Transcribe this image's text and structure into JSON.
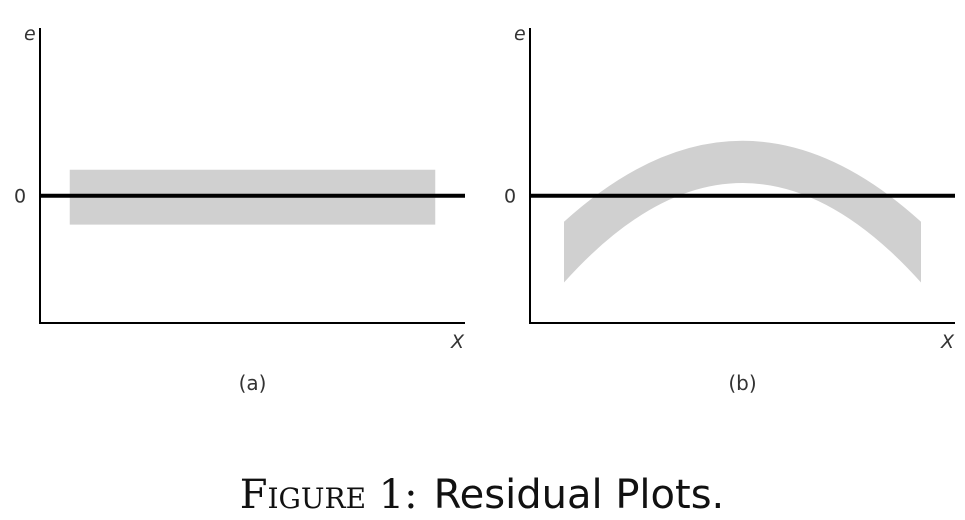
{
  "figure": {
    "caption_prefix": "Figure 1:",
    "caption_text": "Residual Plots."
  },
  "colors": {
    "band": "#d0d0d0",
    "axis": "#000000",
    "zero_line": "#000000",
    "text": "#333333"
  },
  "chart_data": [
    {
      "type": "area",
      "panel_label": "(a)",
      "xlabel": "X",
      "ylabel": "e",
      "yticks": [
        "0"
      ],
      "band_shape": "horizontal",
      "band_extent": {
        "x": [
          0.07,
          0.93
        ],
        "y": [
          -0.5,
          0.45
        ]
      },
      "band_values": [
        {
          "x": 0.07,
          "lower": -0.5,
          "upper": 0.45
        },
        {
          "x": 0.93,
          "lower": -0.5,
          "upper": 0.45
        }
      ],
      "xlim": [
        0,
        1
      ],
      "ylim": [
        -2.2,
        2.9
      ]
    },
    {
      "type": "area",
      "panel_label": "(b)",
      "xlabel": "X",
      "ylabel": "e",
      "yticks": [
        "0"
      ],
      "band_shape": "curved",
      "band_extent": {
        "x": [
          0.08,
          0.92
        ]
      },
      "band_values": [
        {
          "x": 0.08,
          "lower": -1.5,
          "upper": -0.45
        },
        {
          "x": 0.5,
          "lower": 0.22,
          "upper": 0.95
        },
        {
          "x": 0.92,
          "lower": -1.5,
          "upper": -0.45
        }
      ],
      "xlim": [
        0,
        1
      ],
      "ylim": [
        -2.2,
        2.9
      ]
    }
  ]
}
